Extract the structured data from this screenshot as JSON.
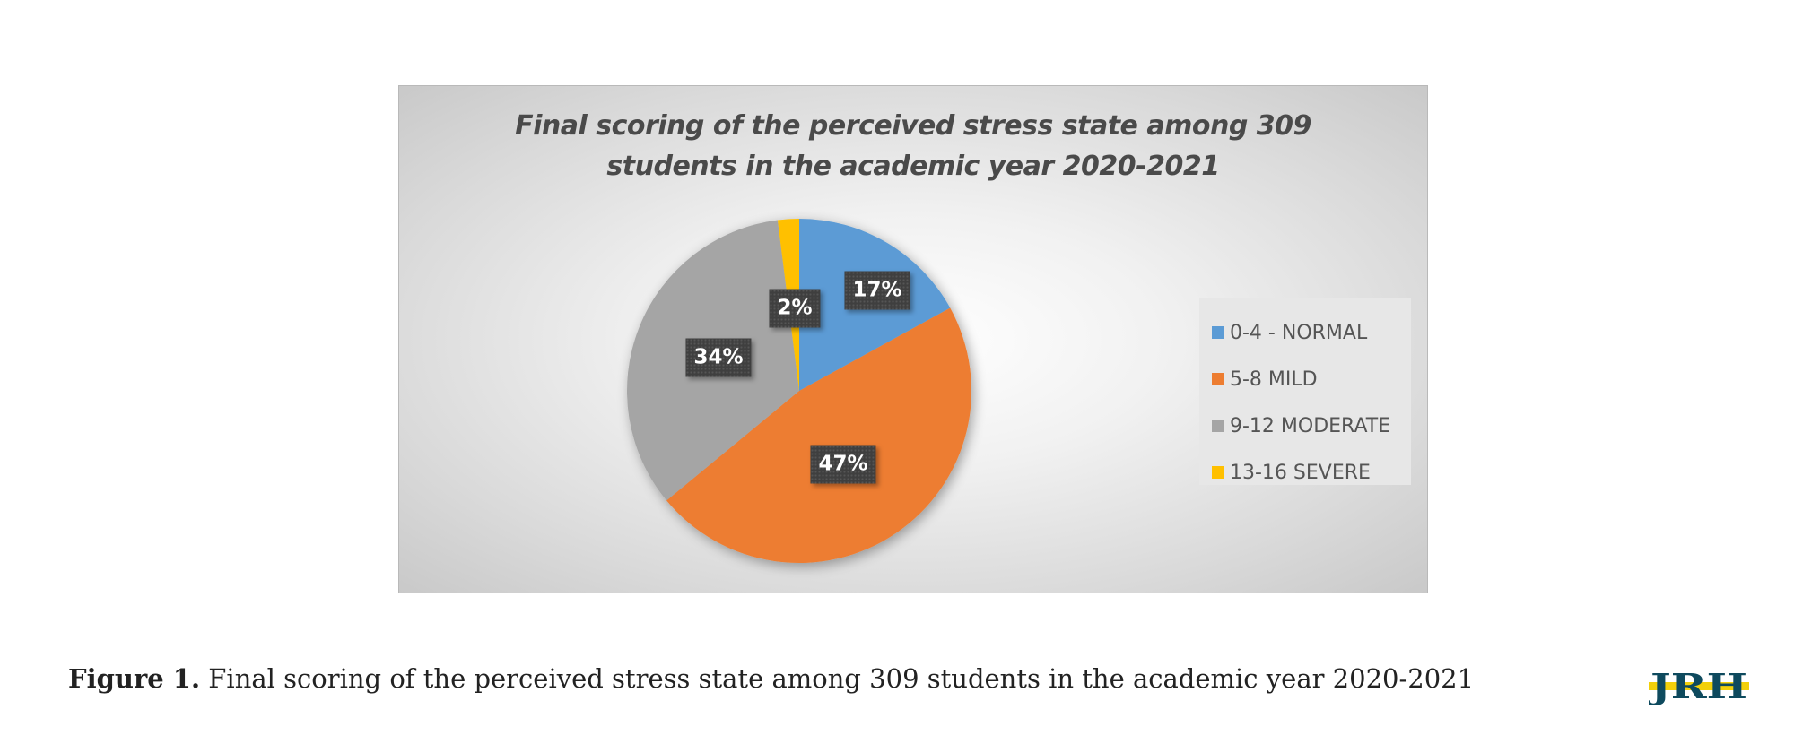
{
  "chart_data": {
    "type": "pie",
    "title_lines": [
      "Final scoring of the perceived stress state among 309",
      "students in the academic year 2020-2021"
    ],
    "categories": [
      "0-4 - NORMAL",
      "5-8 MILD",
      "9-12 MODERATE",
      "13-16 SEVERE"
    ],
    "values": [
      17,
      47,
      34,
      2
    ],
    "labels": [
      "17%",
      "47%",
      "34%",
      "2%"
    ],
    "colors": [
      "#5b9bd5",
      "#ed7d31",
      "#a5a5a5",
      "#ffc000"
    ],
    "legend_position": "right"
  },
  "caption": {
    "label": "Figure 1.",
    "text": "Final scoring of the perceived stress state among 309 students in the academic year 2020-2021"
  },
  "logo": {
    "text": "JRH",
    "colors": [
      "#0e4a5e",
      "#f2d00a"
    ]
  }
}
